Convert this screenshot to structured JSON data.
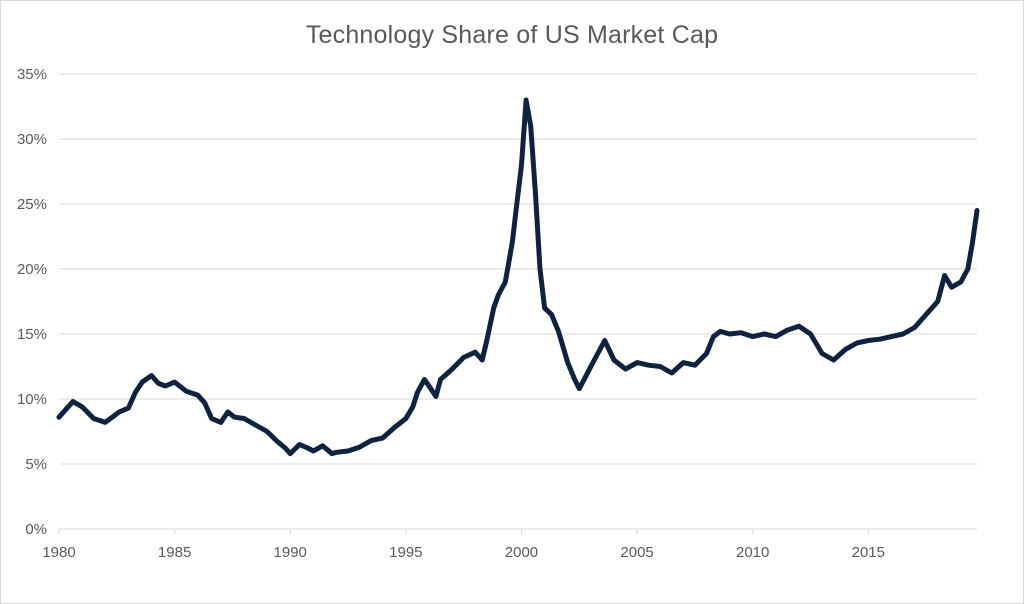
{
  "chart_data": {
    "type": "line",
    "title": "Technology Share of US Market Cap",
    "xlabel": "",
    "ylabel": "",
    "xlim": [
      1980,
      2019.7
    ],
    "ylim": [
      0,
      35
    ],
    "x_ticks": [
      1980,
      1985,
      1990,
      1995,
      2000,
      2005,
      2010,
      2015
    ],
    "x_tick_labels": [
      "1980",
      "1985",
      "1990",
      "1995",
      "2000",
      "2005",
      "2010",
      "2015"
    ],
    "y_ticks": [
      0,
      5,
      10,
      15,
      20,
      25,
      30,
      35
    ],
    "y_tick_labels": [
      "0%",
      "5%",
      "10%",
      "15%",
      "20%",
      "25%",
      "30%",
      "35%"
    ],
    "grid": "horizontal",
    "legend": "none",
    "line_color": "#0f2240",
    "series": [
      {
        "x": [
          1980.0,
          1980.3,
          1980.6,
          1981.0,
          1981.5,
          1982.0,
          1982.3,
          1982.6,
          1983.0,
          1983.3,
          1983.6,
          1984.0,
          1984.3,
          1984.6,
          1985.0,
          1985.5,
          1986.0,
          1986.3,
          1986.6,
          1987.0,
          1987.3,
          1987.6,
          1988.0,
          1988.5,
          1989.0,
          1989.4,
          1989.8,
          1990.0,
          1990.4,
          1990.8,
          1991.0,
          1991.4,
          1991.8,
          1992.0,
          1992.5,
          1993.0,
          1993.5,
          1994.0,
          1994.5,
          1995.0,
          1995.3,
          1995.5,
          1995.8,
          1996.0,
          1996.3,
          1996.5,
          1997.0,
          1997.5,
          1998.0,
          1998.3,
          1998.5,
          1998.8,
          1999.0,
          1999.3,
          1999.6,
          1999.8,
          2000.0,
          2000.2,
          2000.4,
          2000.6,
          2000.8,
          2001.0,
          2001.3,
          2001.6,
          2002.0,
          2002.3,
          2002.5,
          2002.8,
          2003.0,
          2003.3,
          2003.6,
          2004.0,
          2004.5,
          2005.0,
          2005.5,
          2006.0,
          2006.5,
          2007.0,
          2007.5,
          2008.0,
          2008.3,
          2008.6,
          2009.0,
          2009.5,
          2010.0,
          2010.5,
          2011.0,
          2011.5,
          2012.0,
          2012.5,
          2013.0,
          2013.5,
          2014.0,
          2014.5,
          2015.0,
          2015.5,
          2016.0,
          2016.5,
          2017.0,
          2017.5,
          2018.0,
          2018.3,
          2018.6,
          2019.0,
          2019.3,
          2019.5,
          2019.7
        ],
        "values": [
          8.6,
          9.2,
          9.8,
          9.4,
          8.5,
          8.2,
          8.6,
          9.0,
          9.3,
          10.5,
          11.3,
          11.8,
          11.2,
          11.0,
          11.3,
          10.6,
          10.3,
          9.7,
          8.5,
          8.2,
          9.0,
          8.6,
          8.5,
          8.0,
          7.5,
          6.8,
          6.2,
          5.8,
          6.5,
          6.2,
          6.0,
          6.4,
          5.8,
          5.9,
          6.0,
          6.3,
          6.8,
          7.0,
          7.8,
          8.5,
          9.4,
          10.5,
          11.5,
          11.0,
          10.2,
          11.5,
          12.3,
          13.2,
          13.6,
          13.0,
          14.5,
          17.0,
          18.0,
          19.0,
          22.0,
          25.0,
          28.0,
          33.0,
          31.0,
          26.0,
          20.0,
          17.0,
          16.5,
          15.2,
          12.8,
          11.5,
          10.8,
          11.8,
          12.5,
          13.5,
          14.5,
          13.0,
          12.3,
          12.8,
          12.6,
          12.5,
          12.0,
          12.8,
          12.6,
          13.5,
          14.8,
          15.2,
          15.0,
          15.1,
          14.8,
          15.0,
          14.8,
          15.3,
          15.6,
          15.0,
          13.5,
          13.0,
          13.8,
          14.3,
          14.5,
          14.6,
          14.8,
          15.0,
          15.5,
          16.5,
          17.5,
          19.5,
          18.6,
          19.0,
          20.0,
          22.0,
          24.5
        ]
      }
    ]
  }
}
